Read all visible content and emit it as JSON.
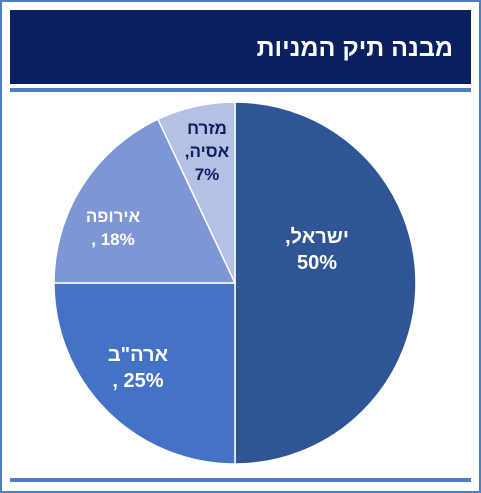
{
  "header": {
    "title": "מבנה תיק המניות"
  },
  "colors": {
    "header_bg": "#0a1f5e",
    "frame": "#4f7fc0",
    "slice_border": "#ffffff"
  },
  "chart_data": {
    "type": "pie",
    "title": "מבנה תיק המניות",
    "start_angle_deg": 0,
    "direction": "clockwise",
    "slices": [
      {
        "label_lines": [
          "ישראל,",
          "50%"
        ],
        "value": 50,
        "color": "#2f5597",
        "label_color": "#ffffff"
      },
      {
        "label_lines": [
          "ארה\"ב",
          "25% ,"
        ],
        "value": 25,
        "color": "#4472c4",
        "label_color": "#ffffff"
      },
      {
        "label_lines": [
          "אירופה",
          "18% ,"
        ],
        "value": 18,
        "color": "#7f96d4",
        "label_color": "#ffffff"
      },
      {
        "label_lines": [
          "מזרח",
          "אסיה,",
          "7%"
        ],
        "value": 7,
        "color": "#b4c0e4",
        "label_color": "#0a1f5e"
      }
    ]
  }
}
